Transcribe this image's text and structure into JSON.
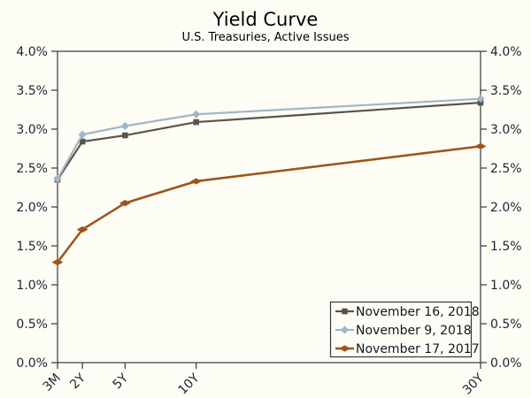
{
  "chart_data": {
    "type": "line",
    "title": "Yield Curve",
    "subtitle": "U.S. Treasuries, Active Issues",
    "x_categories": [
      "3M",
      "2Y",
      "5Y",
      "10Y",
      "30Y"
    ],
    "x_years": [
      0.25,
      2,
      5,
      10,
      30
    ],
    "ylim": [
      0.0,
      4.0
    ],
    "y_tick_values": [
      0.0,
      0.5,
      1.0,
      1.5,
      2.0,
      2.5,
      3.0,
      3.5,
      4.0
    ],
    "y_tick_labels": [
      "0.0%",
      "0.5%",
      "1.0%",
      "1.5%",
      "2.0%",
      "2.5%",
      "3.0%",
      "3.5%",
      "4.0%"
    ],
    "y_axis_sides": [
      "left",
      "right"
    ],
    "grid": false,
    "legend_position": "bottom-right",
    "series": [
      {
        "name": "November 16, 2018",
        "color": "#59544b",
        "marker": "square",
        "values": [
          2.35,
          2.84,
          2.92,
          3.09,
          3.34
        ]
      },
      {
        "name": "November 9, 2018",
        "color": "#a1b6c6",
        "marker": "diamond",
        "values": [
          2.36,
          2.93,
          3.04,
          3.19,
          3.39
        ]
      },
      {
        "name": "November 17, 2017",
        "color": "#9d561c",
        "marker": "arrow",
        "values": [
          1.29,
          1.71,
          2.05,
          2.33,
          2.78
        ]
      }
    ]
  },
  "colors": {
    "background": "#fdfdf6",
    "frame": "#33373b",
    "tick_text": "#1c2430"
  }
}
